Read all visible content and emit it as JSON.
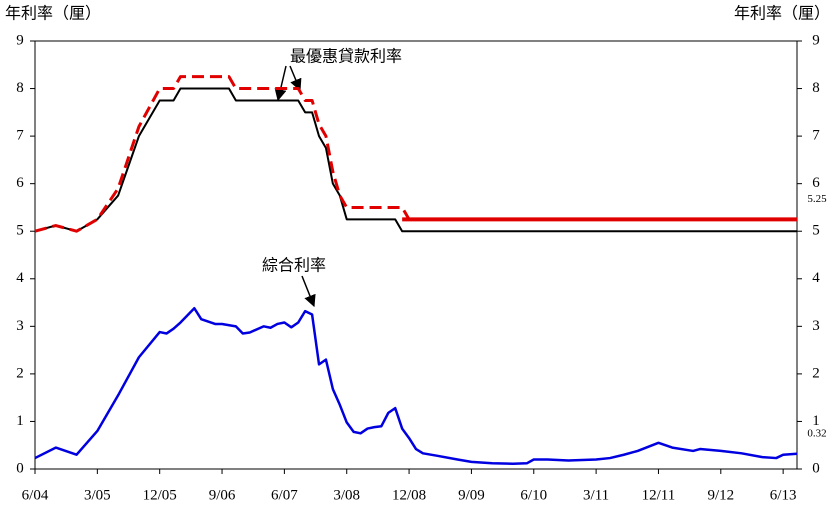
{
  "chart_data": {
    "type": "line",
    "y_label": "年利率（厘）",
    "y2_label": "年利率（厘）",
    "annotations": [
      "最優惠貸款利率",
      "綜合利率"
    ],
    "xlim": [
      0,
      110
    ],
    "xticks": [
      {
        "value": 0,
        "label": "6/04"
      },
      {
        "value": 9,
        "label": "3/05"
      },
      {
        "value": 18,
        "label": "12/05"
      },
      {
        "value": 27,
        "label": "9/06"
      },
      {
        "value": 36,
        "label": "6/07"
      },
      {
        "value": 45,
        "label": "3/08"
      },
      {
        "value": 54,
        "label": "12/08"
      },
      {
        "value": 63,
        "label": "9/09"
      },
      {
        "value": 72,
        "label": "6/10"
      },
      {
        "value": 81,
        "label": "3/11"
      },
      {
        "value": 90,
        "label": "12/11"
      },
      {
        "value": 99,
        "label": "9/12"
      },
      {
        "value": 108,
        "label": "6/13"
      }
    ],
    "ylim": [
      0,
      9
    ],
    "yticks": [
      0,
      1,
      2,
      3,
      4,
      5,
      6,
      7,
      8,
      9
    ],
    "y2lim": [
      0,
      9
    ],
    "y2ticks": [
      0,
      1,
      2,
      3,
      4,
      5,
      6,
      7,
      8,
      9
    ],
    "series": [
      {
        "color": "#000000",
        "width": 2,
        "dash": false,
        "x": [
          0,
          3,
          6,
          9,
          12,
          15,
          18,
          20,
          21,
          28,
          29,
          38,
          39,
          40,
          41,
          42,
          43,
          44,
          45,
          52,
          53,
          110
        ],
        "values": [
          5.0,
          5.12,
          5.0,
          5.25,
          5.75,
          7.0,
          7.75,
          7.75,
          8.0,
          8.0,
          7.75,
          7.75,
          7.5,
          7.5,
          7.0,
          6.75,
          6.0,
          5.75,
          5.25,
          5.25,
          5.0,
          5.0
        ]
      },
      {
        "color": "#e00000",
        "width": 3,
        "dash": true,
        "x": [
          0,
          3,
          6,
          9,
          12,
          15,
          18,
          20,
          21,
          28,
          29,
          38,
          39,
          40,
          41,
          42,
          43,
          44,
          45,
          53,
          54
        ],
        "values": [
          5.0,
          5.12,
          5.0,
          5.25,
          5.9,
          7.2,
          8.0,
          8.0,
          8.25,
          8.25,
          8.0,
          8.0,
          7.75,
          7.75,
          7.25,
          7.0,
          6.25,
          5.75,
          5.5,
          5.5,
          5.25
        ]
      },
      {
        "color": "#e00000",
        "width": 4,
        "dash": false,
        "axis": "y2",
        "x": [
          53,
          110
        ],
        "values": [
          5.25,
          5.25
        ],
        "end_label": 5.25
      },
      {
        "color": "#0000e0",
        "width": 2.5,
        "dash": false,
        "axis": "y2",
        "x": [
          0,
          3,
          6,
          9,
          12,
          15,
          18,
          19,
          20,
          21,
          23,
          24,
          26,
          27,
          29,
          30,
          31,
          33,
          34,
          35,
          36,
          37,
          38,
          39,
          40,
          41,
          42,
          43,
          44,
          45,
          46,
          47,
          48,
          49,
          50,
          51,
          52,
          53,
          54,
          55,
          56,
          58,
          61,
          63,
          66,
          69,
          71,
          72,
          74,
          77,
          81,
          83,
          85,
          87,
          90,
          92,
          95,
          96,
          99,
          102,
          105,
          107,
          108,
          110
        ],
        "values": [
          0.23,
          0.45,
          0.3,
          0.8,
          1.55,
          2.35,
          2.88,
          2.85,
          2.95,
          3.08,
          3.38,
          3.15,
          3.05,
          3.05,
          3.0,
          2.85,
          2.87,
          3.0,
          2.97,
          3.05,
          3.08,
          2.98,
          3.08,
          3.32,
          3.25,
          2.2,
          2.3,
          1.68,
          1.35,
          0.98,
          0.78,
          0.75,
          0.85,
          0.88,
          0.9,
          1.18,
          1.28,
          0.85,
          0.65,
          0.42,
          0.33,
          0.28,
          0.2,
          0.15,
          0.12,
          0.11,
          0.12,
          0.2,
          0.2,
          0.18,
          0.2,
          0.23,
          0.3,
          0.38,
          0.55,
          0.45,
          0.38,
          0.42,
          0.38,
          0.33,
          0.25,
          0.23,
          0.3,
          0.32
        ],
        "end_label": 0.32
      }
    ]
  }
}
